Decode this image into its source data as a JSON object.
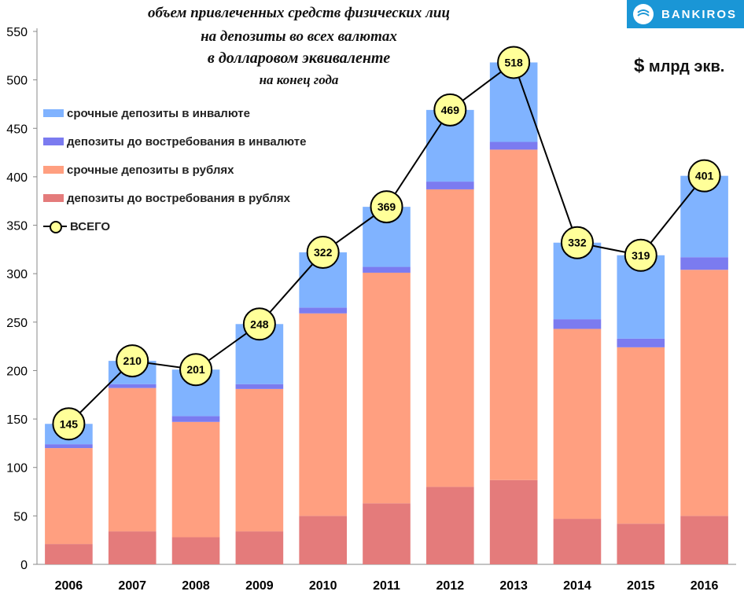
{
  "title": {
    "line1": "объем привлеченных средств физических лиц",
    "line2": "на депозиты во всех валютах",
    "line3": "в долларовом эквиваленте",
    "line4": "на конец года"
  },
  "units": {
    "symbol": "$",
    "text": "млрд экв."
  },
  "brand": {
    "name": "BANKIROS",
    "color": "#1a96d6"
  },
  "chart_data": {
    "type": "bar",
    "stacked": true,
    "categories": [
      "2006",
      "2007",
      "2008",
      "2009",
      "2010",
      "2011",
      "2012",
      "2013",
      "2014",
      "2015",
      "2016"
    ],
    "ylim": [
      0,
      550
    ],
    "yticks": [
      0,
      50,
      100,
      150,
      200,
      250,
      300,
      350,
      400,
      450,
      500,
      550
    ],
    "grid": false,
    "legend_position": "top-left",
    "series": [
      {
        "name": "депозиты до востребования в рублях",
        "color": "#e47b7b",
        "values": [
          21,
          34,
          28,
          34,
          50,
          63,
          80,
          87,
          47,
          42,
          50
        ]
      },
      {
        "name": "срочные депозиты в рублях",
        "color": "#ff9f80",
        "values": [
          99,
          148,
          119,
          147,
          209,
          238,
          307,
          341,
          196,
          182,
          254
        ]
      },
      {
        "name": "депозиты до востребования в инвалюте",
        "color": "#7b7bf0",
        "values": [
          4,
          4,
          6,
          5,
          6,
          6,
          8,
          8,
          10,
          9,
          13
        ]
      },
      {
        "name": "срочные депозиты в инвалюте",
        "color": "#80b3ff",
        "values": [
          21,
          24,
          48,
          62,
          57,
          62,
          74,
          82,
          79,
          86,
          84
        ]
      }
    ],
    "total": {
      "name": "ВСЕГО",
      "values": [
        145,
        210,
        201,
        248,
        322,
        369,
        469,
        518,
        332,
        319,
        401
      ],
      "marker_color": "#ffff99",
      "line_color": "#000000"
    }
  },
  "legend_order": [
    3,
    2,
    1,
    0
  ]
}
